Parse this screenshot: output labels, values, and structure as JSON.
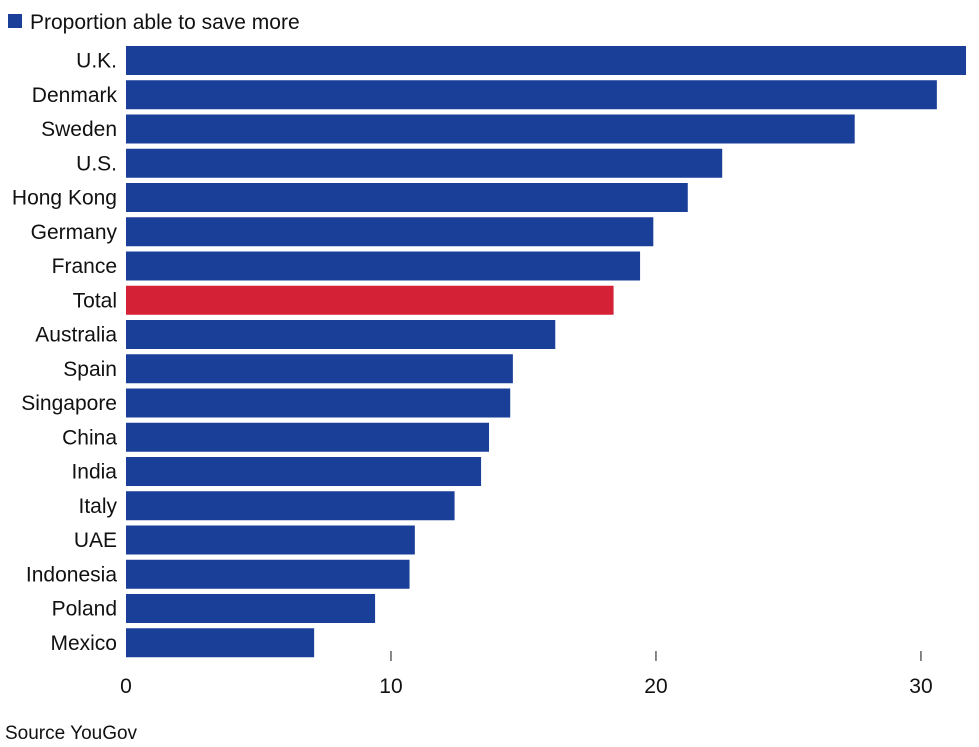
{
  "chart_data": {
    "type": "bar",
    "orientation": "horizontal",
    "legend": {
      "label": "Proportion able to save more",
      "color": "#1a3f98",
      "placement": "top-left"
    },
    "categories": [
      "U.K.",
      "Denmark",
      "Sweden",
      "U.S.",
      "Hong Kong",
      "Germany",
      "France",
      "Total",
      "Australia",
      "Spain",
      "Singapore",
      "China",
      "India",
      "Italy",
      "UAE",
      "Indonesia",
      "Poland",
      "Mexico"
    ],
    "values": [
      31.7,
      30.6,
      27.5,
      22.5,
      21.2,
      19.9,
      19.4,
      18.4,
      16.2,
      14.6,
      14.5,
      13.7,
      13.4,
      12.4,
      10.9,
      10.7,
      9.4,
      7.1
    ],
    "highlight": {
      "category": "Total",
      "color": "#d42135"
    },
    "bar_color": "#1a3f98",
    "xlim": [
      0,
      31.7
    ],
    "xticks": [
      0,
      10,
      20,
      30
    ],
    "xtick_labels": [
      "0",
      "10",
      "20",
      "30"
    ],
    "grid": false,
    "source": "Source YouGov"
  }
}
